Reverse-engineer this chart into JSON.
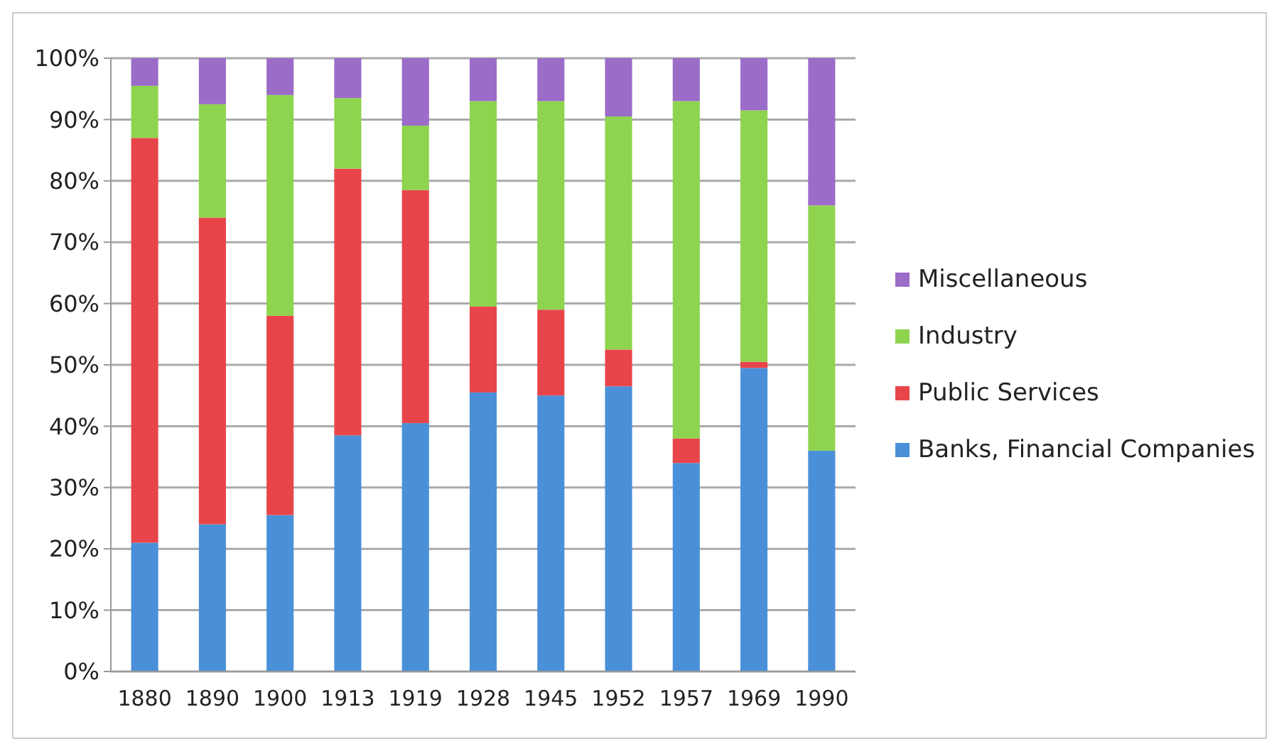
{
  "chart_data": {
    "type": "bar",
    "stacked": true,
    "categories": [
      "1880",
      "1890",
      "1900",
      "1913",
      "1919",
      "1928",
      "1945",
      "1952",
      "1957",
      "1969",
      "1990"
    ],
    "series": [
      {
        "name": "Banks, Financial Companies",
        "color": "#4a90d9",
        "values": [
          21,
          24,
          25.5,
          38.5,
          40.5,
          45.5,
          45,
          46.5,
          34,
          49.5,
          36
        ]
      },
      {
        "name": "Public Services",
        "color": "#e8454a",
        "values": [
          66,
          50,
          32.5,
          43.5,
          38,
          14,
          14,
          6,
          4,
          1,
          0
        ]
      },
      {
        "name": "Industry",
        "color": "#8ed44e",
        "values": [
          8.5,
          18.5,
          36,
          11.5,
          10.5,
          33.5,
          34,
          38,
          55,
          41,
          40
        ]
      },
      {
        "name": "Miscellaneous",
        "color": "#9b6cc8",
        "values": [
          4.5,
          7.5,
          6,
          6.5,
          11,
          7,
          7,
          9.5,
          7,
          8.5,
          24
        ]
      }
    ],
    "ylim": [
      0,
      100
    ],
    "yticks": [
      {
        "value": 0,
        "label": "0%"
      },
      {
        "value": 10,
        "label": "10%"
      },
      {
        "value": 20,
        "label": "20%"
      },
      {
        "value": 30,
        "label": "30%"
      },
      {
        "value": 40,
        "label": "40%"
      },
      {
        "value": 50,
        "label": "50%"
      },
      {
        "value": 60,
        "label": "60%"
      },
      {
        "value": 70,
        "label": "70%"
      },
      {
        "value": 80,
        "label": "80%"
      },
      {
        "value": 90,
        "label": "90%"
      },
      {
        "value": 100,
        "label": "100%"
      }
    ],
    "grid": "y",
    "legend": "right"
  }
}
